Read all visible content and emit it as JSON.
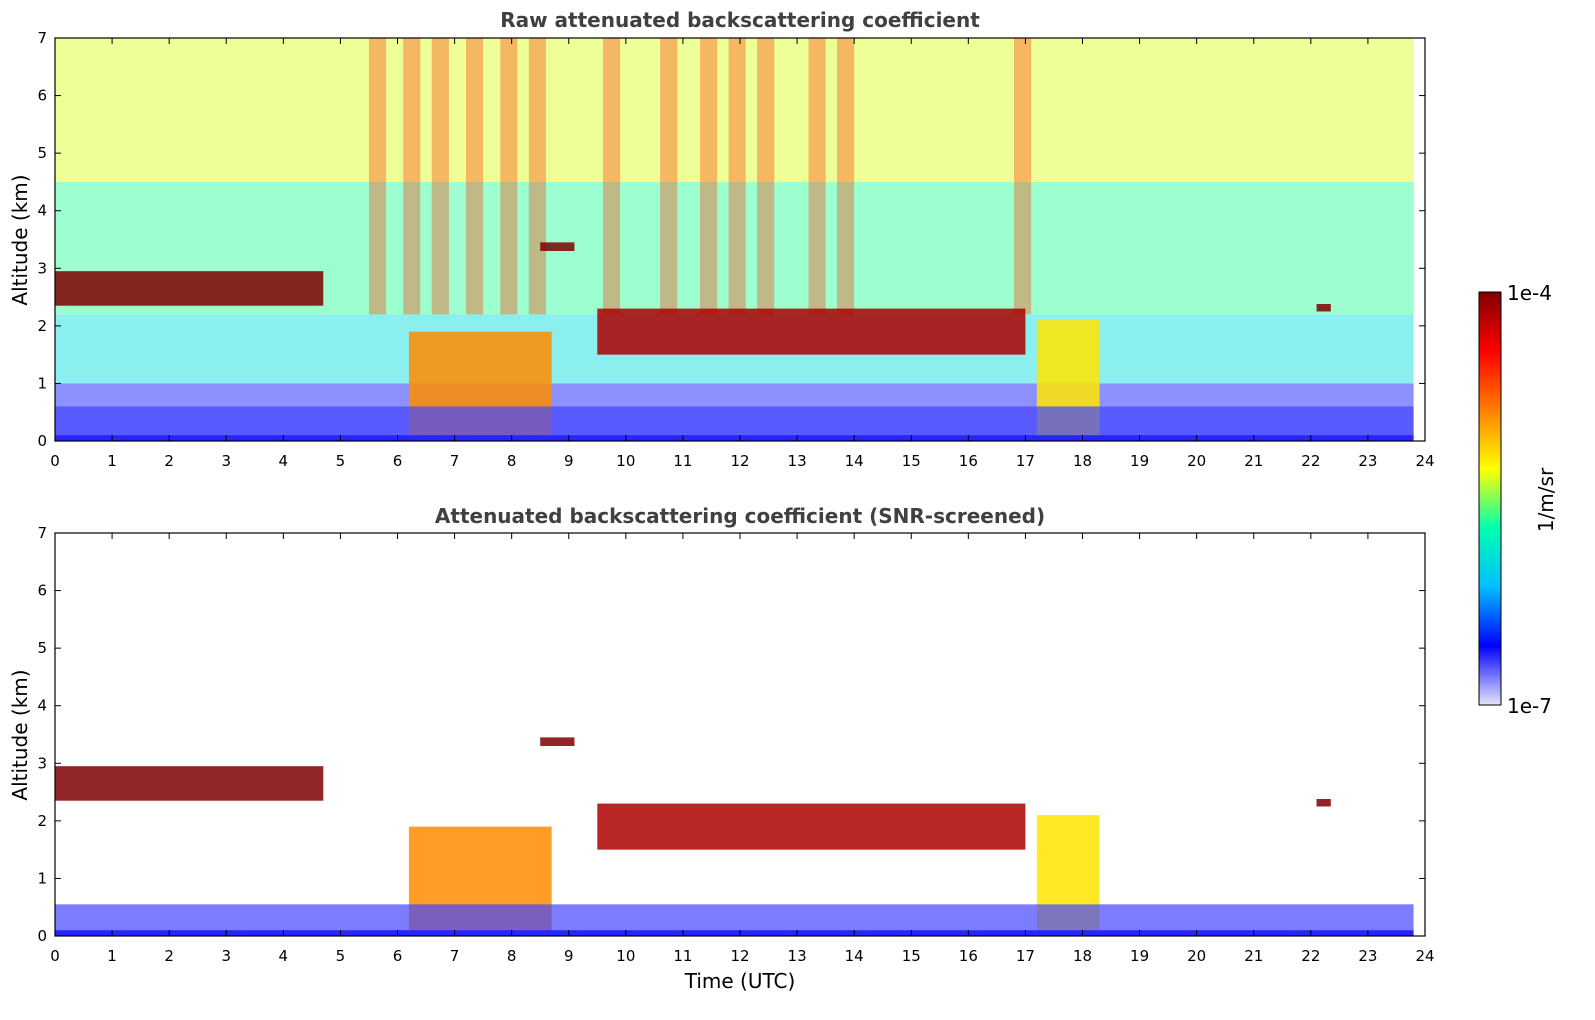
{
  "chart_data": [
    {
      "type": "heatmap",
      "title": "Raw attenuated backscattering coefficient",
      "xlabel": "",
      "ylabel": "Altitude (km)",
      "xlim": [
        0,
        24
      ],
      "ylim": [
        0,
        7
      ],
      "xticks": [
        "0",
        "1",
        "2",
        "3",
        "4",
        "5",
        "6",
        "7",
        "8",
        "9",
        "10",
        "11",
        "12",
        "13",
        "14",
        "15",
        "16",
        "17",
        "18",
        "19",
        "20",
        "21",
        "22",
        "23",
        "24"
      ],
      "yticks": [
        "0",
        "1",
        "2",
        "3",
        "4",
        "5",
        "6",
        "7"
      ],
      "features": [
        {
          "name": "cloud layer",
          "x": [
            0.0,
            4.7
          ],
          "y": [
            2.35,
            2.95
          ],
          "level": 1.0
        },
        {
          "name": "elevated cloud",
          "x": [
            8.5,
            9.1
          ],
          "y": [
            3.3,
            3.45
          ],
          "level": 1.0
        },
        {
          "name": "boundary layer cloud top",
          "x": [
            9.5,
            17.0
          ],
          "y": [
            1.5,
            2.3
          ],
          "level": 0.95
        },
        {
          "name": "precipitation",
          "x": [
            6.2,
            8.7
          ],
          "y": [
            0.0,
            1.9
          ],
          "level": 0.7
        },
        {
          "name": "precipitation",
          "x": [
            17.2,
            18.3
          ],
          "y": [
            0.0,
            2.1
          ],
          "level": 0.6
        },
        {
          "name": "small cloud",
          "x": [
            22.1,
            22.35
          ],
          "y": [
            2.25,
            2.38
          ],
          "level": 1.0
        },
        {
          "name": "near-surface aerosol",
          "x": [
            0.0,
            23.8
          ],
          "y": [
            0.0,
            0.6
          ],
          "level": 0.1
        }
      ]
    },
    {
      "type": "heatmap",
      "title": "Attenuated backscattering coefficient (SNR-screened)",
      "xlabel": "Time (UTC)",
      "ylabel": "Altitude (km)",
      "xlim": [
        0,
        24
      ],
      "ylim": [
        0,
        7
      ],
      "xticks": [
        "0",
        "1",
        "2",
        "3",
        "4",
        "5",
        "6",
        "7",
        "8",
        "9",
        "10",
        "11",
        "12",
        "13",
        "14",
        "15",
        "16",
        "17",
        "18",
        "19",
        "20",
        "21",
        "22",
        "23",
        "24"
      ],
      "yticks": [
        "0",
        "1",
        "2",
        "3",
        "4",
        "5",
        "6",
        "7"
      ],
      "features": [
        {
          "name": "cloud layer",
          "x": [
            0.0,
            4.7
          ],
          "y": [
            2.35,
            2.95
          ],
          "level": 1.0
        },
        {
          "name": "elevated cloud",
          "x": [
            8.5,
            9.1
          ],
          "y": [
            3.3,
            3.45
          ],
          "level": 1.0
        },
        {
          "name": "boundary layer cloud top",
          "x": [
            9.5,
            17.0
          ],
          "y": [
            1.5,
            2.3
          ],
          "level": 0.95
        },
        {
          "name": "precipitation",
          "x": [
            6.2,
            8.7
          ],
          "y": [
            0.0,
            1.9
          ],
          "level": 0.7
        },
        {
          "name": "precipitation",
          "x": [
            17.2,
            18.3
          ],
          "y": [
            0.0,
            2.1
          ],
          "level": 0.6
        },
        {
          "name": "small cloud",
          "x": [
            22.1,
            22.35
          ],
          "y": [
            2.25,
            2.38
          ],
          "level": 1.0
        },
        {
          "name": "near-surface aerosol",
          "x": [
            0.0,
            23.8
          ],
          "y": [
            0.0,
            0.55
          ],
          "level": 0.1
        }
      ]
    }
  ],
  "colorbar": {
    "max_label": "1e-4",
    "min_label": "1e-7",
    "unit_label": "1/m/sr",
    "scale": "log",
    "colors": [
      "#e6e6fa",
      "#0000ff",
      "#00bfff",
      "#00ffb0",
      "#ffff00",
      "#ff7f00",
      "#ff0000",
      "#7f0000"
    ]
  }
}
